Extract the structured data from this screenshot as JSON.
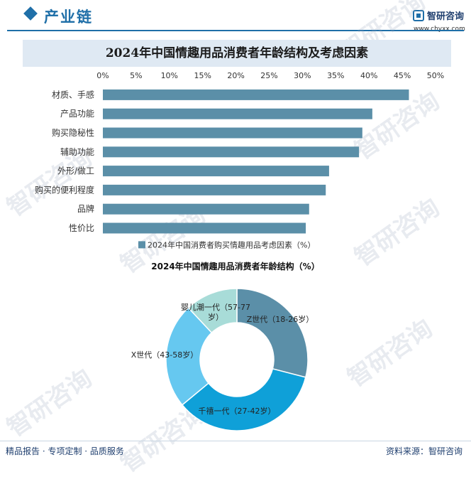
{
  "header": {
    "title": "产业链",
    "logo_name": "智研咨询",
    "logo_url": "www.chyxx.com"
  },
  "watermark_text": "智研咨询",
  "footer": {
    "left": "精品报告 · 专项定制 · 品质服务",
    "right": "资料来源：智研咨询"
  },
  "colors": {
    "brand": "#1f6fa8",
    "bar": "#5b8fa8",
    "donut": [
      "#5b8fa8",
      "#0fa0d8",
      "#66c8f0",
      "#a8dcd8"
    ]
  },
  "chart_data": [
    {
      "type": "bar",
      "orientation": "horizontal",
      "title": "2024年中国情趣用品消费者年龄结构及考虑因素",
      "categories": [
        "材质、手感",
        "产品功能",
        "购买隐秘性",
        "辅助功能",
        "外形/做工",
        "购买的便利程度",
        "品牌",
        "性价比"
      ],
      "series": [
        {
          "name": "2024年中国消费者购买情趣用品考虑因素（%）",
          "values": [
            46,
            40.5,
            39,
            38.5,
            34,
            33.5,
            31,
            30.5
          ]
        }
      ],
      "xlim": [
        0,
        50
      ],
      "tick_labels": [
        "0%",
        "5%",
        "10%",
        "15%",
        "20%",
        "25%",
        "30%",
        "35%",
        "40%",
        "45%",
        "50%"
      ],
      "ticks": [
        0,
        5,
        10,
        15,
        20,
        25,
        30,
        35,
        40,
        45,
        50
      ],
      "grid": false,
      "legend": "bottom"
    },
    {
      "type": "pie",
      "donut": true,
      "title": "2024年中国情趣用品消费者年龄结构（%）",
      "labels": [
        "Z世代（18-26岁）",
        "千禧一代（27-42岁）",
        "X世代（43-58岁）",
        "婴儿潮一代（57-77岁）"
      ],
      "values": [
        29,
        35,
        24,
        12
      ]
    }
  ]
}
